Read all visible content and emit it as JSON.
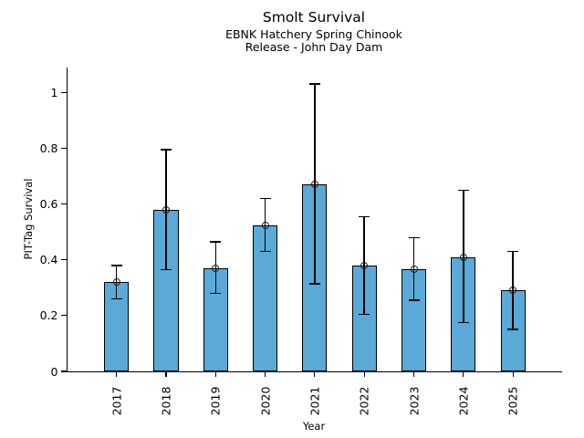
{
  "chart_data": {
    "type": "bar",
    "title": "Smolt Survival",
    "subtitle_line1": "EBNK Hatchery Spring Chinook",
    "subtitle_line2": "Release - John Day Dam",
    "xlabel": "Year",
    "ylabel": "PIT-Tag Survival",
    "categories": [
      "2017",
      "2018",
      "2019",
      "2020",
      "2021",
      "2022",
      "2023",
      "2024",
      "2025"
    ],
    "values": [
      0.32,
      0.58,
      0.37,
      0.525,
      0.67,
      0.38,
      0.365,
      0.41,
      0.29
    ],
    "error_low": [
      0.26,
      0.365,
      0.28,
      0.43,
      0.315,
      0.205,
      0.255,
      0.175,
      0.15
    ],
    "error_high": [
      0.38,
      0.795,
      0.465,
      0.62,
      1.03,
      0.555,
      0.48,
      0.65,
      0.43
    ],
    "yticks": [
      "0",
      "0.2",
      "0.4",
      "0.6",
      "0.8",
      "1"
    ],
    "ylim": [
      0,
      1.09
    ],
    "grid": false,
    "legend": null,
    "marker": "open-circle",
    "bar_color": "#5AA9D6",
    "bar_edge_color": "#000000",
    "error_color": "#000000"
  }
}
